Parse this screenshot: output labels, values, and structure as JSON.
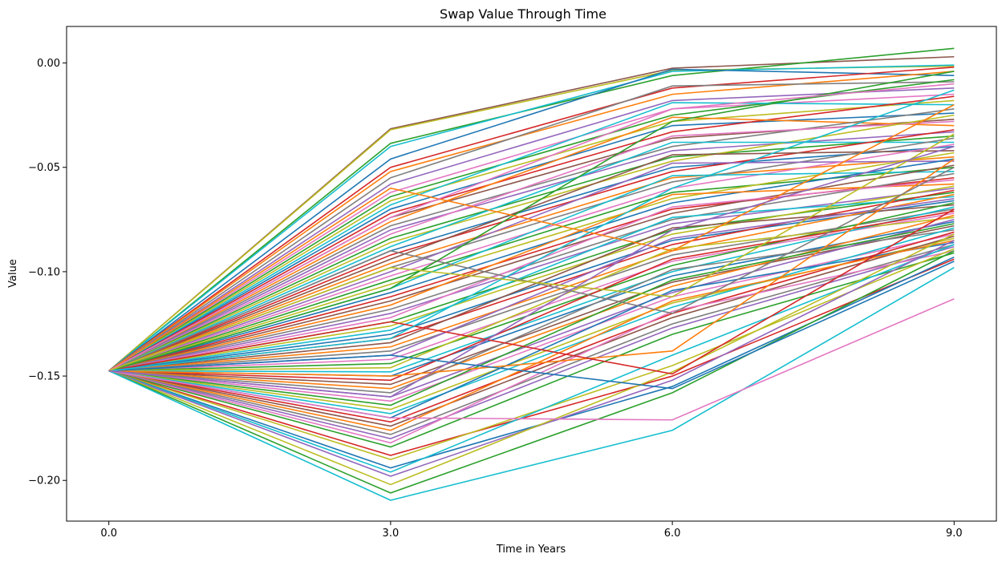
{
  "chart_data": {
    "type": "line",
    "title": "Swap Value Through Time",
    "xlabel": "Time in Years",
    "ylabel": "Value",
    "x": [
      0.0,
      3.0,
      6.0,
      9.0
    ],
    "xticks": [
      "0.0",
      "3.0",
      "6.0",
      "9.0"
    ],
    "yticks": [
      {
        "value": 0.0,
        "label": "0.00"
      },
      {
        "value": -0.05,
        "label": "−0.05"
      },
      {
        "value": -0.1,
        "label": "−0.10"
      },
      {
        "value": -0.15,
        "label": "−0.15"
      },
      {
        "value": -0.2,
        "label": "−0.20"
      }
    ],
    "xlim": [
      -0.45,
      9.45
    ],
    "ylim": [
      -0.2195,
      0.0175
    ],
    "grid": false,
    "legend": "none",
    "palette": [
      "#1f77b4",
      "#ff7f0e",
      "#2ca02c",
      "#d62728",
      "#9467bd",
      "#8c564b",
      "#e377c2",
      "#7f7f7f",
      "#bcbd22",
      "#17becf"
    ],
    "series": [
      {
        "color": "#8c564b",
        "values": [
          -0.1475,
          -0.0315,
          -0.0025,
          0.003
        ]
      },
      {
        "color": "#bcbd22",
        "values": [
          -0.1475,
          -0.032,
          -0.0035,
          -0.0015
        ]
      },
      {
        "color": "#2ca02c",
        "values": [
          -0.1475,
          -0.0385,
          -0.006,
          0.007
        ]
      },
      {
        "color": "#17becf",
        "values": [
          -0.1475,
          -0.04,
          -0.004,
          -0.001
        ]
      },
      {
        "color": "#1f77b4",
        "values": [
          -0.1475,
          -0.046,
          -0.003,
          -0.006
        ]
      },
      {
        "color": "#d62728",
        "values": [
          -0.1475,
          -0.05,
          -0.012,
          -0.002
        ]
      },
      {
        "color": "#ff7f0e",
        "values": [
          -0.1475,
          -0.052,
          -0.015,
          -0.004
        ]
      },
      {
        "color": "#7f7f7f",
        "values": [
          -0.1475,
          -0.055,
          -0.011,
          -0.009
        ]
      },
      {
        "color": "#9467bd",
        "values": [
          -0.1475,
          -0.058,
          -0.018,
          -0.012
        ]
      },
      {
        "color": "#e377c2",
        "values": [
          -0.1475,
          -0.062,
          -0.022,
          -0.015
        ]
      },
      {
        "color": "#2ca02c",
        "values": [
          -0.1475,
          -0.064,
          -0.025,
          -0.008
        ]
      },
      {
        "color": "#bcbd22",
        "values": [
          -0.1475,
          -0.066,
          -0.028,
          -0.018
        ]
      },
      {
        "color": "#17becf",
        "values": [
          -0.1475,
          -0.068,
          -0.019,
          -0.02
        ]
      },
      {
        "color": "#1f77b4",
        "values": [
          -0.1475,
          -0.07,
          -0.03,
          -0.024
        ]
      },
      {
        "color": "#d62728",
        "values": [
          -0.1475,
          -0.072,
          -0.033,
          -0.016
        ]
      },
      {
        "color": "#8c564b",
        "values": [
          -0.1475,
          -0.074,
          -0.036,
          -0.027
        ]
      },
      {
        "color": "#ff7f0e",
        "values": [
          -0.1475,
          -0.076,
          -0.026,
          -0.03
        ]
      },
      {
        "color": "#7f7f7f",
        "values": [
          -0.1475,
          -0.078,
          -0.04,
          -0.022
        ]
      },
      {
        "color": "#9467bd",
        "values": [
          -0.1475,
          -0.08,
          -0.042,
          -0.033
        ]
      },
      {
        "color": "#e377c2",
        "values": [
          -0.1475,
          -0.082,
          -0.035,
          -0.028
        ]
      },
      {
        "color": "#2ca02c",
        "values": [
          -0.1475,
          -0.084,
          -0.045,
          -0.035
        ]
      },
      {
        "color": "#bcbd22",
        "values": [
          -0.1475,
          -0.086,
          -0.047,
          -0.025
        ]
      },
      {
        "color": "#17becf",
        "values": [
          -0.1475,
          -0.088,
          -0.038,
          -0.038
        ]
      },
      {
        "color": "#1f77b4",
        "values": [
          -0.1475,
          -0.09,
          -0.05,
          -0.04
        ]
      },
      {
        "color": "#d62728",
        "values": [
          -0.1475,
          -0.092,
          -0.052,
          -0.032
        ]
      },
      {
        "color": "#8c564b",
        "values": [
          -0.1475,
          -0.094,
          -0.044,
          -0.042
        ]
      },
      {
        "color": "#ff7f0e",
        "values": [
          -0.1475,
          -0.096,
          -0.055,
          -0.045
        ]
      },
      {
        "color": "#7f7f7f",
        "values": [
          -0.1475,
          -0.098,
          -0.057,
          -0.036
        ]
      },
      {
        "color": "#9467bd",
        "values": [
          -0.1475,
          -0.1,
          -0.048,
          -0.047
        ]
      },
      {
        "color": "#e377c2",
        "values": [
          -0.1475,
          -0.102,
          -0.06,
          -0.039
        ]
      },
      {
        "color": "#2ca02c",
        "values": [
          -0.1475,
          -0.104,
          -0.062,
          -0.05
        ]
      },
      {
        "color": "#bcbd22",
        "values": [
          -0.1475,
          -0.106,
          -0.065,
          -0.043
        ]
      },
      {
        "color": "#17becf",
        "values": [
          -0.1475,
          -0.108,
          -0.054,
          -0.052
        ]
      },
      {
        "color": "#1f77b4",
        "values": [
          -0.1475,
          -0.11,
          -0.067,
          -0.046
        ]
      },
      {
        "color": "#d62728",
        "values": [
          -0.1475,
          -0.112,
          -0.07,
          -0.055
        ]
      },
      {
        "color": "#8c564b",
        "values": [
          -0.1475,
          -0.114,
          -0.072,
          -0.049
        ]
      },
      {
        "color": "#ff7f0e",
        "values": [
          -0.1475,
          -0.116,
          -0.063,
          -0.058
        ]
      },
      {
        "color": "#7f7f7f",
        "values": [
          -0.1475,
          -0.118,
          -0.075,
          -0.053
        ]
      },
      {
        "color": "#9467bd",
        "values": [
          -0.1475,
          -0.12,
          -0.077,
          -0.06
        ]
      },
      {
        "color": "#e377c2",
        "values": [
          -0.1475,
          -0.122,
          -0.069,
          -0.056
        ]
      },
      {
        "color": "#2ca02c",
        "values": [
          -0.1475,
          -0.124,
          -0.08,
          -0.062
        ]
      },
      {
        "color": "#bcbd22",
        "values": [
          -0.1475,
          -0.126,
          -0.082,
          -0.059
        ]
      },
      {
        "color": "#17becf",
        "values": [
          -0.1475,
          -0.128,
          -0.074,
          -0.064
        ]
      },
      {
        "color": "#1f77b4",
        "values": [
          -0.1475,
          -0.13,
          -0.085,
          -0.066
        ]
      },
      {
        "color": "#d62728",
        "values": [
          -0.1475,
          -0.132,
          -0.087,
          -0.061
        ]
      },
      {
        "color": "#8c564b",
        "values": [
          -0.1475,
          -0.134,
          -0.079,
          -0.068
        ]
      },
      {
        "color": "#ff7f0e",
        "values": [
          -0.1475,
          -0.136,
          -0.09,
          -0.063
        ]
      },
      {
        "color": "#7f7f7f",
        "values": [
          -0.1475,
          -0.138,
          -0.092,
          -0.07
        ]
      },
      {
        "color": "#9467bd",
        "values": [
          -0.1475,
          -0.14,
          -0.084,
          -0.065
        ]
      },
      {
        "color": "#e377c2",
        "values": [
          -0.1475,
          -0.142,
          -0.095,
          -0.072
        ]
      },
      {
        "color": "#2ca02c",
        "values": [
          -0.1475,
          -0.144,
          -0.097,
          -0.067
        ]
      },
      {
        "color": "#bcbd22",
        "values": [
          -0.1475,
          -0.146,
          -0.089,
          -0.074
        ]
      },
      {
        "color": "#17becf",
        "values": [
          -0.1475,
          -0.148,
          -0.1,
          -0.069
        ]
      },
      {
        "color": "#1f77b4",
        "values": [
          -0.1475,
          -0.15,
          -0.102,
          -0.076
        ]
      },
      {
        "color": "#d62728",
        "values": [
          -0.1475,
          -0.152,
          -0.094,
          -0.071
        ]
      },
      {
        "color": "#8c564b",
        "values": [
          -0.1475,
          -0.154,
          -0.105,
          -0.078
        ]
      },
      {
        "color": "#ff7f0e",
        "values": [
          -0.1475,
          -0.156,
          -0.107,
          -0.073
        ]
      },
      {
        "color": "#7f7f7f",
        "values": [
          -0.1475,
          -0.158,
          -0.099,
          -0.08
        ]
      },
      {
        "color": "#9467bd",
        "values": [
          -0.1475,
          -0.16,
          -0.11,
          -0.075
        ]
      },
      {
        "color": "#e377c2",
        "values": [
          -0.1475,
          -0.162,
          -0.112,
          -0.082
        ]
      },
      {
        "color": "#2ca02c",
        "values": [
          -0.1475,
          -0.164,
          -0.104,
          -0.077
        ]
      },
      {
        "color": "#bcbd22",
        "values": [
          -0.1475,
          -0.166,
          -0.115,
          -0.084
        ]
      },
      {
        "color": "#17becf",
        "values": [
          -0.1475,
          -0.168,
          -0.117,
          -0.079
        ]
      },
      {
        "color": "#1f77b4",
        "values": [
          -0.1475,
          -0.17,
          -0.109,
          -0.086
        ]
      },
      {
        "color": "#d62728",
        "values": [
          -0.1475,
          -0.172,
          -0.12,
          -0.081
        ]
      },
      {
        "color": "#8c564b",
        "values": [
          -0.1475,
          -0.174,
          -0.122,
          -0.083
        ]
      },
      {
        "color": "#ff7f0e",
        "values": [
          -0.1475,
          -0.176,
          -0.114,
          -0.085
        ]
      },
      {
        "color": "#7f7f7f",
        "values": [
          -0.1475,
          -0.178,
          -0.125,
          -0.087
        ]
      },
      {
        "color": "#9467bd",
        "values": [
          -0.1475,
          -0.18,
          -0.127,
          -0.088
        ]
      },
      {
        "color": "#e377c2",
        "values": [
          -0.1475,
          -0.182,
          -0.119,
          -0.09
        ]
      },
      {
        "color": "#2ca02c",
        "values": [
          -0.1475,
          -0.184,
          -0.13,
          -0.091
        ]
      },
      {
        "color": "#d62728",
        "values": [
          -0.1475,
          -0.188,
          -0.15,
          -0.094
        ]
      },
      {
        "color": "#bcbd22",
        "values": [
          -0.1475,
          -0.19,
          -0.145,
          -0.089
        ]
      },
      {
        "color": "#1f77b4",
        "values": [
          -0.1475,
          -0.194,
          -0.155,
          -0.093
        ]
      },
      {
        "color": "#17becf",
        "values": [
          -0.1475,
          -0.196,
          -0.14,
          -0.087
        ]
      },
      {
        "color": "#9467bd",
        "values": [
          -0.1475,
          -0.198,
          -0.152,
          -0.085
        ]
      },
      {
        "color": "#bcbd22",
        "values": [
          -0.1475,
          -0.202,
          -0.148,
          -0.082
        ]
      },
      {
        "color": "#2ca02c",
        "values": [
          -0.1475,
          -0.206,
          -0.158,
          -0.09
        ]
      },
      {
        "color": "#17becf",
        "values": [
          -0.1475,
          -0.2095,
          -0.176,
          -0.098
        ]
      },
      {
        "color": "#e377c2",
        "values": [
          -0.1475,
          -0.17,
          -0.171,
          -0.113
        ]
      },
      {
        "color": "#ff7f0e",
        "values": [
          -0.1475,
          -0.15,
          -0.138,
          -0.046
        ]
      },
      {
        "color": "#d62728",
        "values": [
          -0.1475,
          -0.124,
          -0.149,
          -0.07
        ]
      },
      {
        "color": "#1f77b4",
        "values": [
          -0.1475,
          -0.14,
          -0.156,
          -0.095
        ]
      },
      {
        "color": "#7f7f7f",
        "values": [
          -0.1475,
          -0.09,
          -0.12,
          -0.05
        ]
      },
      {
        "color": "#2ca02c",
        "values": [
          -0.1475,
          -0.108,
          -0.028,
          -0.004
        ]
      },
      {
        "color": "#ff7f0e",
        "values": [
          -0.1475,
          -0.06,
          -0.09,
          -0.02
        ]
      },
      {
        "color": "#e377c2",
        "values": [
          -0.1475,
          -0.074,
          -0.022,
          -0.01
        ]
      },
      {
        "color": "#17becf",
        "values": [
          -0.1475,
          -0.132,
          -0.06,
          -0.013
        ]
      },
      {
        "color": "#bcbd22",
        "values": [
          -0.1475,
          -0.098,
          -0.112,
          -0.034
        ]
      },
      {
        "color": "#9467bd",
        "values": [
          -0.1475,
          -0.16,
          -0.08,
          -0.04
        ]
      }
    ]
  }
}
